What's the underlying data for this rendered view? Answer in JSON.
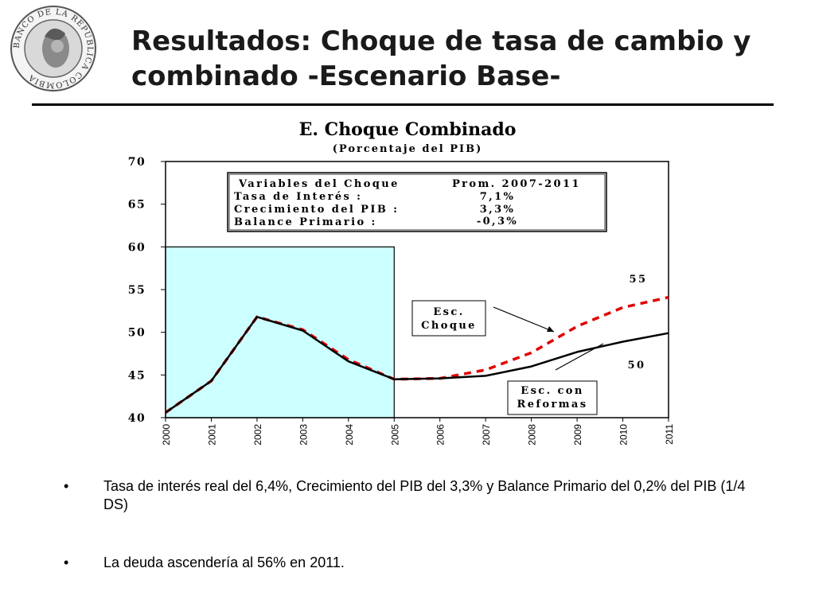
{
  "slide": {
    "title_line1": "Resultados: Choque de tasa de cambio y",
    "title_line2": "combinado -Escenario Base-",
    "logo": {
      "icon": "bank-seal-icon",
      "text": "BANCO DE LA REPUBLICA COLOMBIA"
    }
  },
  "chart_data": {
    "type": "line",
    "title": "E. Choque Combinado",
    "subtitle": "(Porcentaje del PIB)",
    "x": [
      "2000",
      "2001",
      "2002",
      "2003",
      "2004",
      "2005",
      "2006",
      "2007",
      "2008",
      "2009",
      "2010",
      "2011"
    ],
    "ylim": [
      40,
      70
    ],
    "yticks": [
      "70",
      "65",
      "60",
      "55",
      "50",
      "45",
      "40"
    ],
    "grid": false,
    "historical_band": {
      "from": "2000",
      "to": "2005",
      "top": 60,
      "color": "#ccffff"
    },
    "series": [
      {
        "values": [
          40.6,
          44.3,
          51.8,
          50.2,
          46.6,
          44.5,
          44.6,
          44.9,
          46.0,
          47.7,
          48.9,
          49.9
        ],
        "color": "#000000",
        "style": "solid"
      },
      {
        "values": [
          40.6,
          44.3,
          51.8,
          50.3,
          46.8,
          44.5,
          44.6,
          45.6,
          47.6,
          50.7,
          52.9,
          54.1
        ],
        "color": "#e00000",
        "style": "dashed"
      }
    ],
    "legend_box": {
      "header_variable": "Variables del Choque",
      "header_value": "Prom. 2007-2011",
      "rows": [
        {
          "label": "Tasa de Interés :",
          "value": "7,1%"
        },
        {
          "label": "Crecimiento del PIB :",
          "value": "3,3%"
        },
        {
          "label": "Balance Primario :",
          "value": "-0,3%"
        }
      ]
    },
    "annotations": {
      "choque_line1": "Esc.",
      "choque_line2": "Choque",
      "reformas_line1": "Esc. con",
      "reformas_line2": "Reformas",
      "label_upper": "55",
      "label_lower": "50"
    }
  },
  "bullets": [
    "Tasa de interés real del 6,4%, Crecimiento del PIB del 3,3% y Balance Primario del 0,2% del PIB (1/4 DS)",
    "La deuda ascendería al 56% en 2011."
  ],
  "bullet_marker": "•"
}
